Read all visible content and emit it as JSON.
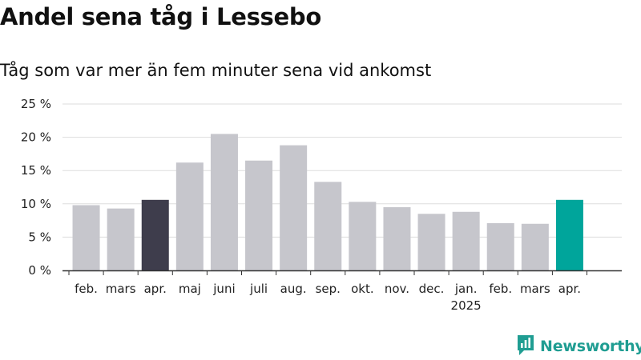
{
  "title": "Andel sena tåg i Lessebo",
  "subtitle": "Tåg som var mer än fem minuter sena vid ankomst",
  "brand": {
    "name": "Newsworthy",
    "icon": "bar-chart-logo-icon",
    "color": "#1f9d92"
  },
  "chart_data": {
    "type": "bar",
    "title": "Andel sena tåg i Lessebo",
    "subtitle": "Tåg som var mer än fem minuter sena vid ankomst",
    "categories": [
      "feb.",
      "mars",
      "apr.",
      "maj",
      "juni",
      "juli",
      "aug.",
      "sep.",
      "okt.",
      "nov.",
      "dec.",
      "jan.",
      "feb.",
      "mars",
      "apr."
    ],
    "year_labels": [
      "",
      "",
      "",
      "",
      "",
      "",
      "",
      "",
      "",
      "",
      "",
      "2025",
      "",
      "",
      ""
    ],
    "values": [
      9.8,
      9.3,
      10.6,
      16.2,
      20.5,
      16.5,
      18.8,
      13.3,
      10.3,
      9.5,
      8.5,
      8.8,
      7.1,
      7.0,
      10.6
    ],
    "bar_colors": [
      "#c6c6cc",
      "#c6c6cc",
      "#3e3d4c",
      "#c6c6cc",
      "#c6c6cc",
      "#c6c6cc",
      "#c6c6cc",
      "#c6c6cc",
      "#c6c6cc",
      "#c6c6cc",
      "#c6c6cc",
      "#c6c6cc",
      "#c6c6cc",
      "#c6c6cc",
      "#00a59b"
    ],
    "ylim": [
      0,
      25
    ],
    "yticks": [
      0,
      5,
      10,
      15,
      20,
      25
    ],
    "ytick_labels": [
      "0 %",
      "5 %",
      "10 %",
      "15 %",
      "20 %",
      "25 %"
    ],
    "grid": true,
    "xlabel": "",
    "ylabel": ""
  }
}
